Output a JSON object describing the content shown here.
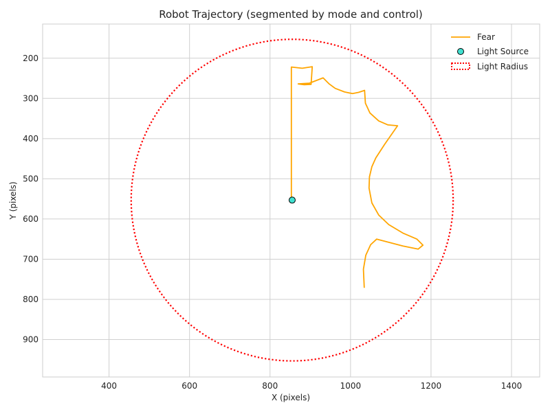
{
  "chart_data": {
    "type": "line",
    "title": "Robot Trajectory (segmented by mode and control)",
    "xlabel": "X (pixels)",
    "ylabel": "Y (pixels)",
    "xlim": [
      235,
      1470
    ],
    "ylim": [
      993,
      115
    ],
    "y_inverted": true,
    "grid": true,
    "legend_position": "top-right",
    "xticks": [
      400,
      600,
      800,
      1000,
      1200,
      1400
    ],
    "yticks": [
      200,
      300,
      400,
      500,
      600,
      700,
      800,
      900
    ],
    "series": [
      {
        "name": "Fear",
        "color": "#FFA500",
        "points": [
          [
            853,
            553
          ],
          [
            853,
            222
          ],
          [
            880,
            225
          ],
          [
            905,
            221
          ],
          [
            902,
            265
          ],
          [
            885,
            266
          ],
          [
            870,
            264
          ],
          [
            898,
            262
          ],
          [
            932,
            249
          ],
          [
            947,
            264
          ],
          [
            962,
            275
          ],
          [
            985,
            284
          ],
          [
            1005,
            288
          ],
          [
            1020,
            285
          ],
          [
            1035,
            280
          ],
          [
            1037,
            312
          ],
          [
            1048,
            336
          ],
          [
            1070,
            356
          ],
          [
            1093,
            366
          ],
          [
            1117,
            368
          ],
          [
            1085,
            414
          ],
          [
            1063,
            448
          ],
          [
            1053,
            470
          ],
          [
            1047,
            495
          ],
          [
            1046,
            523
          ],
          [
            1053,
            560
          ],
          [
            1070,
            590
          ],
          [
            1095,
            614
          ],
          [
            1130,
            635
          ],
          [
            1165,
            650
          ],
          [
            1180,
            665
          ],
          [
            1168,
            675
          ],
          [
            1130,
            667
          ],
          [
            1065,
            650
          ],
          [
            1050,
            664
          ],
          [
            1038,
            690
          ],
          [
            1032,
            725
          ],
          [
            1034,
            770
          ]
        ]
      },
      {
        "name": "Light Source",
        "type": "scatter",
        "color": "#40E0D0",
        "points": [
          [
            855,
            553
          ]
        ]
      },
      {
        "name": "Light Radius",
        "type": "circle",
        "color": "#FF0000",
        "center": [
          855,
          553
        ],
        "radius": 400
      }
    ]
  }
}
